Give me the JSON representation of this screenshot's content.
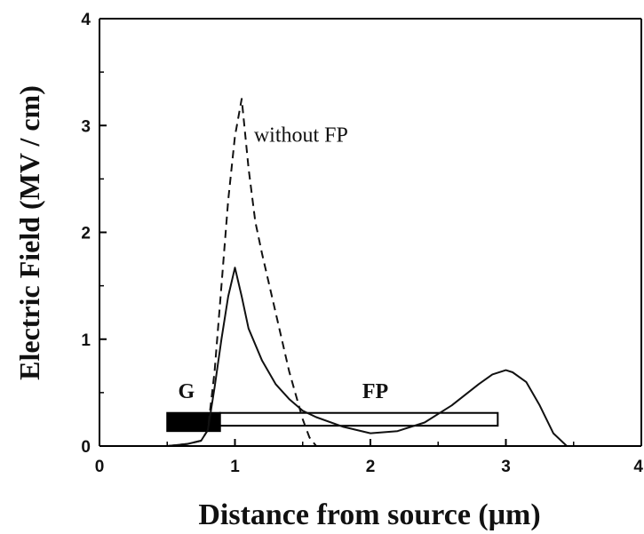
{
  "chart_data": {
    "type": "line",
    "title": "",
    "xlabel": "Distance from source (μm)",
    "ylabel": "Electric Field (MV / cm)",
    "xlim": [
      0,
      4
    ],
    "ylim": [
      0,
      4
    ],
    "xticks": [
      0,
      1,
      2,
      3,
      4
    ],
    "yticks": [
      0,
      1,
      2,
      3,
      4
    ],
    "xtick_labels": [
      "0",
      "1",
      "2",
      "3",
      "4"
    ],
    "ytick_labels": [
      "0",
      "1",
      "2",
      "3",
      "4"
    ],
    "grid": false,
    "legend": "none",
    "series": [
      {
        "name": "",
        "style": "solid",
        "x": [
          0.2,
          0.5,
          0.65,
          0.75,
          0.8,
          0.85,
          0.9,
          0.95,
          1.0,
          1.05,
          1.1,
          1.2,
          1.3,
          1.4,
          1.5,
          1.6,
          1.8,
          2.0,
          2.2,
          2.4,
          2.6,
          2.8,
          2.9,
          3.0,
          3.05,
          3.15,
          3.25,
          3.35,
          3.45
        ],
        "y": [
          0.0,
          0.0,
          0.02,
          0.05,
          0.15,
          0.55,
          1.0,
          1.4,
          1.67,
          1.4,
          1.1,
          0.8,
          0.58,
          0.44,
          0.33,
          0.27,
          0.18,
          0.12,
          0.14,
          0.22,
          0.38,
          0.58,
          0.67,
          0.71,
          0.69,
          0.6,
          0.38,
          0.12,
          0.0
        ]
      },
      {
        "name": "without FP",
        "style": "dashed",
        "x": [
          0.5,
          0.65,
          0.75,
          0.8,
          0.85,
          0.9,
          0.95,
          1.0,
          1.05,
          1.1,
          1.15,
          1.2,
          1.3,
          1.4,
          1.5,
          1.55,
          1.6
        ],
        "y": [
          0.0,
          0.02,
          0.05,
          0.15,
          0.7,
          1.5,
          2.3,
          2.9,
          3.25,
          2.6,
          2.1,
          1.8,
          1.25,
          0.7,
          0.25,
          0.08,
          0.0
        ]
      }
    ],
    "annotations": [
      {
        "text": "without FP",
        "x": 1.14,
        "y": 2.85
      },
      {
        "text": "G",
        "x": 0.58,
        "y": 0.45
      },
      {
        "text": "FP",
        "x": 1.94,
        "y": 0.45
      }
    ],
    "structures": [
      {
        "name": "gate",
        "x_start": 0.5,
        "x_end": 0.89,
        "y_bottom": 0.14,
        "y_top": 0.31,
        "fill": "#000000"
      },
      {
        "name": "field-plate",
        "x_start": 0.89,
        "x_end": 2.94,
        "y_bottom": 0.19,
        "y_top": 0.31,
        "fill": "#ffffff"
      }
    ]
  }
}
